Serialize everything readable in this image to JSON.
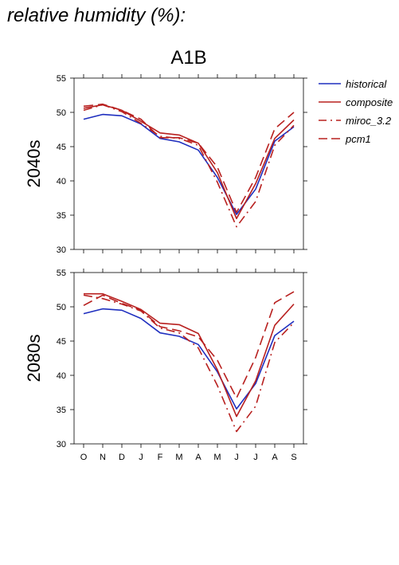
{
  "page_title": "relative humidity (%):",
  "panel_title": "A1B",
  "colors": {
    "historical": "#1f2fbf",
    "future": "#b8201f"
  },
  "legend": [
    {
      "name": "historical",
      "color": "#1f2fbf",
      "dash": "solid"
    },
    {
      "name": "composite",
      "color": "#b8201f",
      "dash": "solid"
    },
    {
      "name": "miroc_3.2",
      "color": "#b8201f",
      "dash": "dashdot"
    },
    {
      "name": "pcm1",
      "color": "#b8201f",
      "dash": "dashed"
    }
  ],
  "chart_data": [
    {
      "type": "line",
      "row_label": "2040s",
      "categories": [
        "O",
        "N",
        "D",
        "J",
        "F",
        "M",
        "A",
        "M",
        "J",
        "J",
        "A",
        "S"
      ],
      "ylim": [
        30,
        55
      ],
      "yticks": [
        30,
        35,
        40,
        45,
        50,
        55
      ],
      "grid": false,
      "legend_position": "right",
      "series": [
        {
          "name": "historical",
          "values": [
            49.0,
            49.7,
            49.5,
            48.3,
            46.2,
            45.7,
            44.5,
            40.5,
            35.1,
            38.8,
            45.8,
            47.9
          ]
        },
        {
          "name": "composite",
          "values": [
            50.6,
            51.1,
            50.3,
            48.7,
            47.0,
            46.7,
            45.5,
            41.2,
            34.5,
            39.6,
            46.2,
            48.9
          ]
        },
        {
          "name": "miroc_3.2",
          "values": [
            50.3,
            51.1,
            50.1,
            48.4,
            46.5,
            46.2,
            45.2,
            39.8,
            33.3,
            37.0,
            45.2,
            48.1
          ]
        },
        {
          "name": "pcm1",
          "values": [
            50.9,
            51.2,
            50.3,
            49.0,
            46.3,
            46.3,
            45.5,
            42.0,
            35.4,
            40.5,
            47.6,
            50.0
          ]
        }
      ]
    },
    {
      "type": "line",
      "row_label": "2080s",
      "categories": [
        "O",
        "N",
        "D",
        "J",
        "F",
        "M",
        "A",
        "M",
        "J",
        "J",
        "A",
        "S"
      ],
      "ylim": [
        30,
        55
      ],
      "yticks": [
        30,
        35,
        40,
        45,
        50,
        55
      ],
      "grid": false,
      "series": [
        {
          "name": "historical",
          "values": [
            49.0,
            49.7,
            49.5,
            48.3,
            46.2,
            45.7,
            44.5,
            40.5,
            35.1,
            38.8,
            45.8,
            47.9
          ]
        },
        {
          "name": "composite",
          "values": [
            51.9,
            51.9,
            50.8,
            49.6,
            47.6,
            47.4,
            46.1,
            40.8,
            34.0,
            39.2,
            47.3,
            50.4
          ]
        },
        {
          "name": "miroc_3.2",
          "values": [
            51.7,
            51.2,
            50.4,
            49.4,
            46.9,
            46.2,
            44.0,
            38.5,
            31.8,
            35.5,
            44.8,
            47.7
          ]
        },
        {
          "name": "pcm1",
          "values": [
            50.2,
            51.7,
            50.5,
            49.5,
            47.1,
            46.5,
            45.6,
            42.2,
            36.7,
            42.6,
            50.6,
            52.2
          ]
        }
      ]
    }
  ]
}
